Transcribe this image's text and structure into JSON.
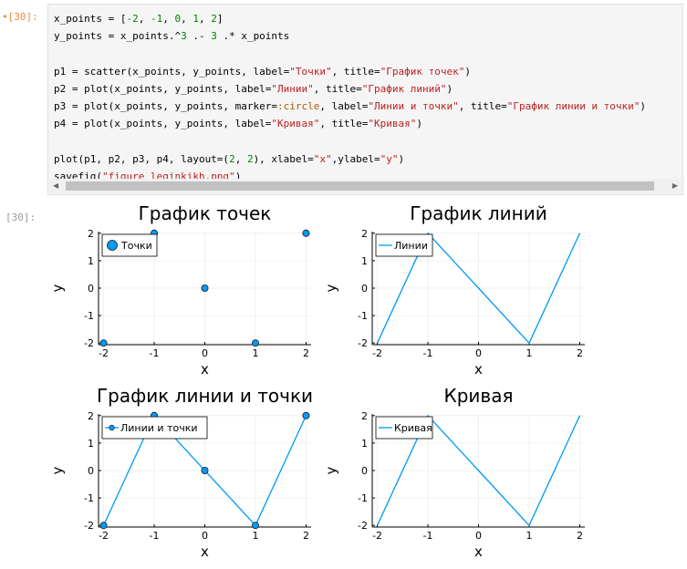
{
  "cell": {
    "in_prompt": "•[30]:",
    "out_prompt": "[30]:",
    "code_lines": [
      [
        {
          "t": "x_points = ["
        },
        {
          "t": "-2",
          "c": "num"
        },
        {
          "t": ", "
        },
        {
          "t": "-1",
          "c": "num"
        },
        {
          "t": ", "
        },
        {
          "t": "0",
          "c": "num"
        },
        {
          "t": ", "
        },
        {
          "t": "1",
          "c": "num"
        },
        {
          "t": ", "
        },
        {
          "t": "2",
          "c": "num"
        },
        {
          "t": "]"
        }
      ],
      [
        {
          "t": "y_points = x_points.^"
        },
        {
          "t": "3",
          "c": "num"
        },
        {
          "t": " .- "
        },
        {
          "t": "3",
          "c": "num"
        },
        {
          "t": " .* x_points"
        }
      ],
      [],
      [
        {
          "t": "p1 = scatter(x_points, y_points, label="
        },
        {
          "t": "\"Точки\"",
          "c": "str"
        },
        {
          "t": ", title="
        },
        {
          "t": "\"График точек\"",
          "c": "str"
        },
        {
          "t": ")"
        }
      ],
      [
        {
          "t": "p2 = plot(x_points, y_points, label="
        },
        {
          "t": "\"Линии\"",
          "c": "str"
        },
        {
          "t": ", title="
        },
        {
          "t": "\"График линий\"",
          "c": "str"
        },
        {
          "t": ")"
        }
      ],
      [
        {
          "t": "p3 = plot(x_points, y_points, marker="
        },
        {
          "t": ":circle",
          "c": "sym"
        },
        {
          "t": ", label="
        },
        {
          "t": "\"Линии и точки\"",
          "c": "str"
        },
        {
          "t": ", title="
        },
        {
          "t": "\"График линии и точки\"",
          "c": "str"
        },
        {
          "t": ")"
        }
      ],
      [
        {
          "t": "p4 = plot(x_points, y_points, label="
        },
        {
          "t": "\"Кривая\"",
          "c": "str"
        },
        {
          "t": ", title="
        },
        {
          "t": "\"Кривая\"",
          "c": "str"
        },
        {
          "t": ")"
        }
      ],
      [],
      [
        {
          "t": "plot(p1, p2, p3, p4, layout=("
        },
        {
          "t": "2",
          "c": "num"
        },
        {
          "t": ", "
        },
        {
          "t": "2",
          "c": "num"
        },
        {
          "t": "), xlabel="
        },
        {
          "t": "\"x\"",
          "c": "str"
        },
        {
          "t": ",ylabel="
        },
        {
          "t": "\"y\"",
          "c": "str"
        },
        {
          "t": ")"
        }
      ],
      [
        {
          "t": "savefig("
        },
        {
          "t": "\"figure_leginkikh.png\"",
          "c": "str"
        },
        {
          "t": ")"
        }
      ]
    ]
  },
  "colors": {
    "series": "#009af9",
    "marker_stroke": "#1a1a1a",
    "grid": "#ececec",
    "axis": "#000000"
  },
  "chart_data": [
    {
      "type": "scatter",
      "title": "График точек",
      "xlabel": "x",
      "ylabel": "y",
      "x": [
        -2,
        -1,
        0,
        1,
        2
      ],
      "y": [
        -2,
        2,
        0,
        -2,
        2
      ],
      "xlim": [
        -2.1,
        2.1
      ],
      "ylim": [
        -2.06,
        2.06
      ],
      "xticks": [
        "-2",
        "-1",
        "0",
        "1",
        "2"
      ],
      "yticks": [
        "2",
        "1",
        "0",
        "-1",
        "-2"
      ],
      "legend": "Точки",
      "legend_placement": "top-left",
      "lines": false,
      "markers": true
    },
    {
      "type": "line",
      "title": "График линий",
      "xlabel": "x",
      "ylabel": "y",
      "x": [
        -2,
        -1,
        0,
        1,
        2
      ],
      "y": [
        -2,
        2,
        0,
        -2,
        2
      ],
      "xlim": [
        -2.1,
        2.1
      ],
      "ylim": [
        -2.06,
        2.06
      ],
      "xticks": [
        "-2",
        "-1",
        "0",
        "1",
        "2"
      ],
      "yticks": [
        "2",
        "1",
        "0",
        "-1",
        "-2"
      ],
      "legend": "Линии",
      "legend_placement": "top-left",
      "lines": true,
      "markers": false
    },
    {
      "type": "line",
      "title": "График линии и точки",
      "xlabel": "x",
      "ylabel": "y",
      "x": [
        -2,
        -1,
        0,
        1,
        2
      ],
      "y": [
        -2,
        2,
        0,
        -2,
        2
      ],
      "xlim": [
        -2.1,
        2.1
      ],
      "ylim": [
        -2.06,
        2.06
      ],
      "xticks": [
        "-2",
        "-1",
        "0",
        "1",
        "2"
      ],
      "yticks": [
        "2",
        "1",
        "0",
        "-1",
        "-2"
      ],
      "legend": "Линии и точки",
      "legend_placement": "top-left",
      "lines": true,
      "markers": true
    },
    {
      "type": "line",
      "title": "Кривая",
      "xlabel": "x",
      "ylabel": "y",
      "x": [
        -2,
        -1,
        0,
        1,
        2
      ],
      "y": [
        -2,
        2,
        0,
        -2,
        2
      ],
      "xlim": [
        -2.1,
        2.1
      ],
      "ylim": [
        -2.06,
        2.06
      ],
      "xticks": [
        "-2",
        "-1",
        "0",
        "1",
        "2"
      ],
      "yticks": [
        "2",
        "1",
        "0",
        "-1",
        "-2"
      ],
      "legend": "Кривая",
      "legend_placement": "top-left",
      "lines": true,
      "markers": false
    }
  ]
}
